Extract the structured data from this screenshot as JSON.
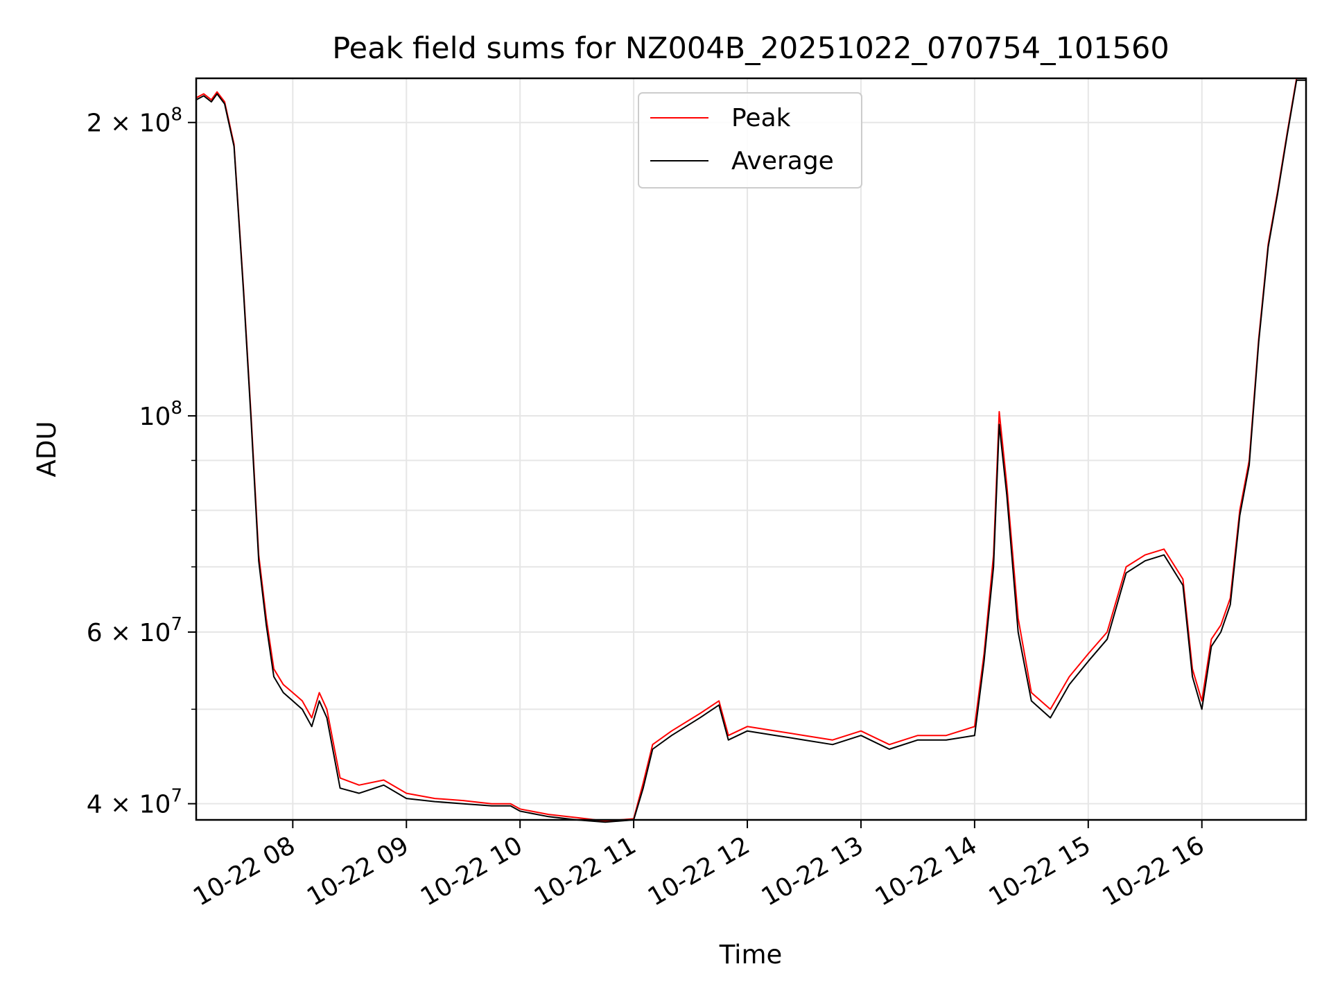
{
  "chart_data": {
    "type": "line",
    "title": "Peak field sums for NZ004B_20251022_070754_101560",
    "xlabel": "Time",
    "ylabel": "ADU",
    "y_scale": "log",
    "ylim": [
      38500000,
      222000000
    ],
    "xlim": [
      "2025-10-22 07:09",
      "2025-10-22 16:55"
    ],
    "x_ticks": [
      {
        "value": "2025-10-22 08:00",
        "label": "10-22 08"
      },
      {
        "value": "2025-10-22 09:00",
        "label": "10-22 09"
      },
      {
        "value": "2025-10-22 10:00",
        "label": "10-22 10"
      },
      {
        "value": "2025-10-22 11:00",
        "label": "10-22 11"
      },
      {
        "value": "2025-10-22 12:00",
        "label": "10-22 12"
      },
      {
        "value": "2025-10-22 13:00",
        "label": "10-22 13"
      },
      {
        "value": "2025-10-22 14:00",
        "label": "10-22 14"
      },
      {
        "value": "2025-10-22 15:00",
        "label": "10-22 15"
      },
      {
        "value": "2025-10-22 16:00",
        "label": "10-22 16"
      }
    ],
    "y_major_ticks": [
      {
        "value": 40000000,
        "base": "4 × 10",
        "exp": "7"
      },
      {
        "value": 60000000,
        "base": "6 × 10",
        "exp": "7"
      },
      {
        "value": 100000000,
        "base": "10",
        "exp": "8"
      },
      {
        "value": 200000000,
        "base": "2 × 10",
        "exp": "8"
      }
    ],
    "y_minor_ticks": [
      50000000,
      70000000,
      80000000,
      90000000
    ],
    "grid": true,
    "legend": {
      "position": "top-center"
    },
    "series": [
      {
        "name": "Peak",
        "color": "#ff0000",
        "x": [
          "2025-10-22 07:09",
          "2025-10-22 07:13",
          "2025-10-22 07:17",
          "2025-10-22 07:20",
          "2025-10-22 07:24",
          "2025-10-22 07:29",
          "2025-10-22 07:34",
          "2025-10-22 07:38",
          "2025-10-22 07:42",
          "2025-10-22 07:46",
          "2025-10-22 07:50",
          "2025-10-22 07:55",
          "2025-10-22 08:00",
          "2025-10-22 08:05",
          "2025-10-22 08:10",
          "2025-10-22 08:14",
          "2025-10-22 08:18",
          "2025-10-22 08:25",
          "2025-10-22 08:35",
          "2025-10-22 08:48",
          "2025-10-22 09:00",
          "2025-10-22 09:15",
          "2025-10-22 09:30",
          "2025-10-22 09:45",
          "2025-10-22 09:55",
          "2025-10-22 10:00",
          "2025-10-22 10:15",
          "2025-10-22 10:30",
          "2025-10-22 10:45",
          "2025-10-22 11:00",
          "2025-10-22 11:05",
          "2025-10-22 11:10",
          "2025-10-22 11:20",
          "2025-10-22 11:35",
          "2025-10-22 11:45",
          "2025-10-22 11:50",
          "2025-10-22 12:00",
          "2025-10-22 12:15",
          "2025-10-22 12:30",
          "2025-10-22 12:45",
          "2025-10-22 13:00",
          "2025-10-22 13:15",
          "2025-10-22 13:30",
          "2025-10-22 13:45",
          "2025-10-22 14:00",
          "2025-10-22 14:05",
          "2025-10-22 14:10",
          "2025-10-22 14:13",
          "2025-10-22 14:17",
          "2025-10-22 14:23",
          "2025-10-22 14:30",
          "2025-10-22 14:40",
          "2025-10-22 14:50",
          "2025-10-22 15:00",
          "2025-10-22 15:10",
          "2025-10-22 15:20",
          "2025-10-22 15:30",
          "2025-10-22 15:40",
          "2025-10-22 15:50",
          "2025-10-22 15:55",
          "2025-10-22 16:00",
          "2025-10-22 16:05",
          "2025-10-22 16:10",
          "2025-10-22 16:15",
          "2025-10-22 16:20",
          "2025-10-22 16:25",
          "2025-10-22 16:30",
          "2025-10-22 16:35",
          "2025-10-22 16:40",
          "2025-10-22 16:45",
          "2025-10-22 16:50",
          "2025-10-22 16:55"
        ],
        "values": [
          212000000,
          214000000,
          211000000,
          215000000,
          210000000,
          190000000,
          135000000,
          100000000,
          72000000,
          62000000,
          55000000,
          53000000,
          52000000,
          51000000,
          49000000,
          52000000,
          50000000,
          42500000,
          41800000,
          42300000,
          41000000,
          40500000,
          40300000,
          40000000,
          40000000,
          39500000,
          39000000,
          38700000,
          38400000,
          38600000,
          42000000,
          46000000,
          47500000,
          49500000,
          51000000,
          47000000,
          48000000,
          47500000,
          47000000,
          46500000,
          47500000,
          46000000,
          47000000,
          47000000,
          48000000,
          57000000,
          72000000,
          101000000,
          85000000,
          62000000,
          52000000,
          50000000,
          54000000,
          57000000,
          60000000,
          70000000,
          72000000,
          73000000,
          68000000,
          55000000,
          51000000,
          59000000,
          61000000,
          65000000,
          80000000,
          90000000,
          120000000,
          150000000,
          170000000,
          195000000,
          222000000,
          222000000
        ]
      },
      {
        "name": "Average",
        "color": "#000000",
        "x": [
          "2025-10-22 07:09",
          "2025-10-22 07:13",
          "2025-10-22 07:17",
          "2025-10-22 07:20",
          "2025-10-22 07:24",
          "2025-10-22 07:29",
          "2025-10-22 07:34",
          "2025-10-22 07:38",
          "2025-10-22 07:42",
          "2025-10-22 07:46",
          "2025-10-22 07:50",
          "2025-10-22 07:55",
          "2025-10-22 08:00",
          "2025-10-22 08:05",
          "2025-10-22 08:10",
          "2025-10-22 08:14",
          "2025-10-22 08:18",
          "2025-10-22 08:25",
          "2025-10-22 08:35",
          "2025-10-22 08:48",
          "2025-10-22 09:00",
          "2025-10-22 09:15",
          "2025-10-22 09:30",
          "2025-10-22 09:45",
          "2025-10-22 09:55",
          "2025-10-22 10:00",
          "2025-10-22 10:15",
          "2025-10-22 10:30",
          "2025-10-22 10:45",
          "2025-10-22 11:00",
          "2025-10-22 11:05",
          "2025-10-22 11:10",
          "2025-10-22 11:20",
          "2025-10-22 11:35",
          "2025-10-22 11:45",
          "2025-10-22 11:50",
          "2025-10-22 12:00",
          "2025-10-22 12:15",
          "2025-10-22 12:30",
          "2025-10-22 12:45",
          "2025-10-22 13:00",
          "2025-10-22 13:15",
          "2025-10-22 13:30",
          "2025-10-22 13:45",
          "2025-10-22 14:00",
          "2025-10-22 14:05",
          "2025-10-22 14:10",
          "2025-10-22 14:13",
          "2025-10-22 14:17",
          "2025-10-22 14:23",
          "2025-10-22 14:30",
          "2025-10-22 14:40",
          "2025-10-22 14:50",
          "2025-10-22 15:00",
          "2025-10-22 15:10",
          "2025-10-22 15:20",
          "2025-10-22 15:30",
          "2025-10-22 15:40",
          "2025-10-22 15:50",
          "2025-10-22 15:55",
          "2025-10-22 16:00",
          "2025-10-22 16:05",
          "2025-10-22 16:10",
          "2025-10-22 16:15",
          "2025-10-22 16:20",
          "2025-10-22 16:25",
          "2025-10-22 16:30",
          "2025-10-22 16:35",
          "2025-10-22 16:40",
          "2025-10-22 16:45",
          "2025-10-22 16:50",
          "2025-10-22 16:55"
        ],
        "values": [
          211000000,
          213000000,
          210000000,
          214000000,
          209000000,
          189000000,
          134000000,
          99000000,
          71000000,
          61000000,
          54000000,
          52000000,
          51000000,
          50000000,
          48000000,
          51000000,
          49000000,
          41500000,
          41000000,
          41800000,
          40500000,
          40200000,
          40000000,
          39800000,
          39800000,
          39300000,
          38800000,
          38500000,
          38300000,
          38500000,
          41500000,
          45500000,
          47000000,
          49000000,
          50500000,
          46500000,
          47500000,
          47000000,
          46500000,
          46000000,
          47000000,
          45500000,
          46500000,
          46500000,
          47000000,
          56000000,
          70000000,
          98000000,
          83000000,
          60000000,
          51000000,
          49000000,
          53000000,
          56000000,
          59000000,
          69000000,
          71000000,
          72000000,
          67000000,
          54000000,
          50000000,
          58000000,
          60000000,
          64000000,
          79000000,
          89000000,
          119000000,
          149000000,
          169000000,
          194000000,
          221000000,
          221000000
        ]
      }
    ]
  }
}
